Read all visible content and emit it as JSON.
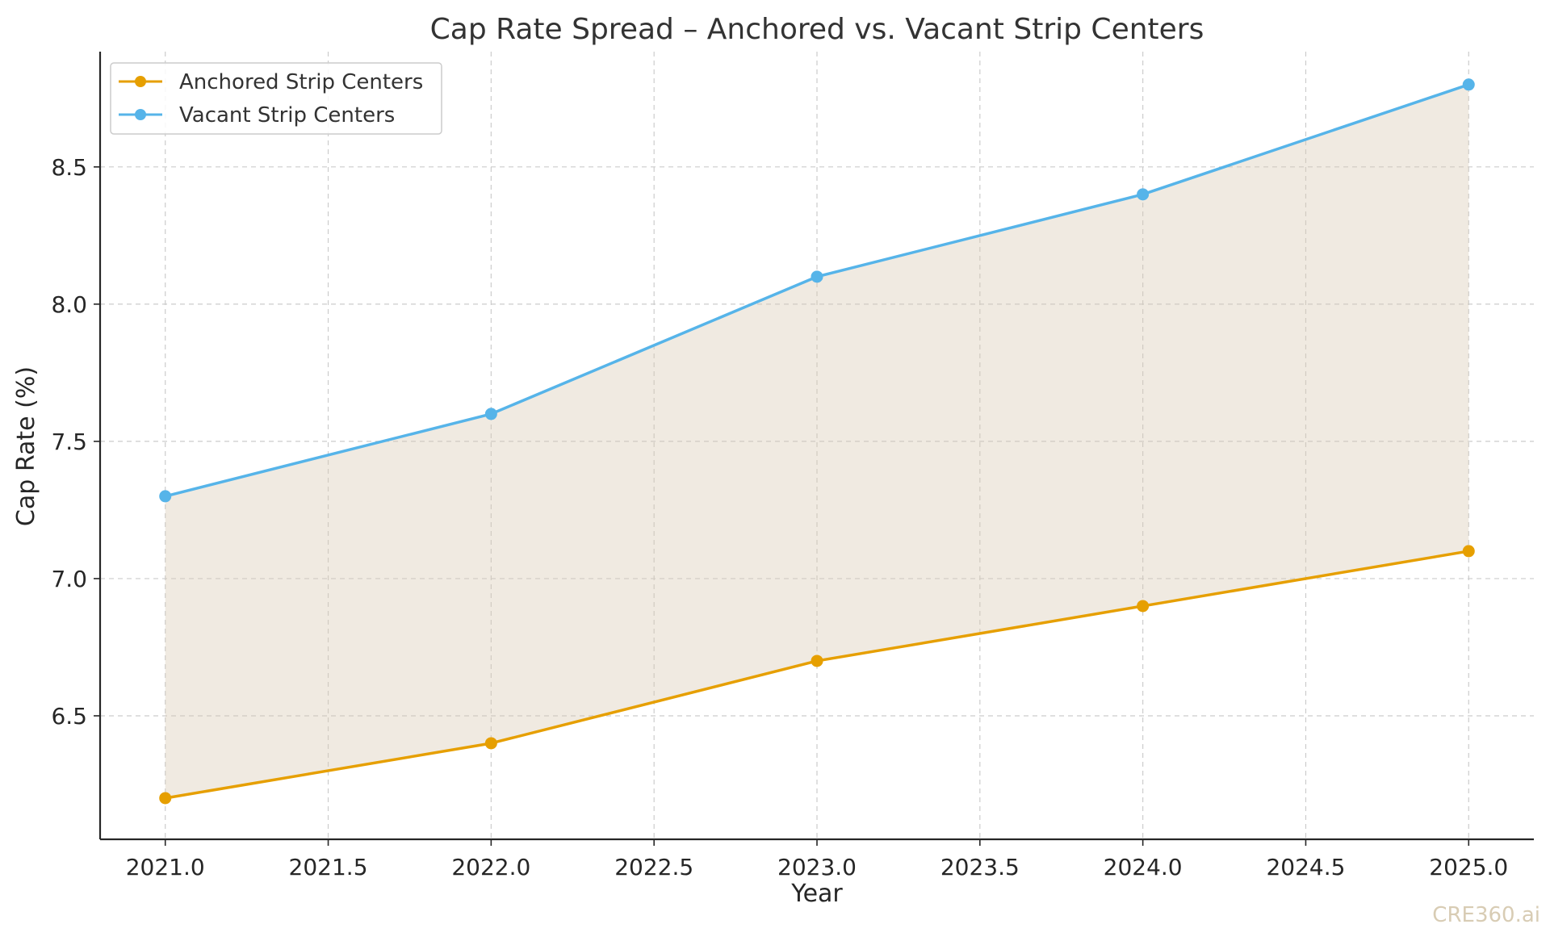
{
  "chart_data": {
    "type": "line",
    "title": "Cap Rate Spread – Anchored vs. Vacant Strip Centers",
    "xlabel": "Year",
    "ylabel": "Cap Rate (%)",
    "x": [
      2021,
      2022,
      2023,
      2024,
      2025
    ],
    "series": [
      {
        "name": "Anchored Strip Centers",
        "values": [
          6.2,
          6.4,
          6.7,
          6.9,
          7.1
        ],
        "color": "#e69f00"
      },
      {
        "name": "Vacant Strip Centers",
        "values": [
          7.3,
          7.6,
          8.1,
          8.4,
          8.8
        ],
        "color": "#56b4e9"
      }
    ],
    "fill_between": {
      "color": "#d9cbb3",
      "opacity": 0.4
    },
    "xlim": [
      2020.8,
      2025.2
    ],
    "ylim": [
      6.05,
      8.92
    ],
    "xticks": [
      2021.0,
      2021.5,
      2022.0,
      2022.5,
      2023.0,
      2023.5,
      2024.0,
      2024.5,
      2025.0
    ],
    "xtick_labels": [
      "2021.0",
      "2021.5",
      "2022.0",
      "2022.5",
      "2023.0",
      "2023.5",
      "2024.0",
      "2024.5",
      "2025.0"
    ],
    "yticks": [
      6.5,
      7.0,
      7.5,
      8.0,
      8.5
    ],
    "ytick_labels": [
      "6.5",
      "7.0",
      "7.5",
      "8.0",
      "8.5"
    ],
    "grid": true,
    "legend_position": "top-left"
  },
  "watermark": "CRE360.ai"
}
